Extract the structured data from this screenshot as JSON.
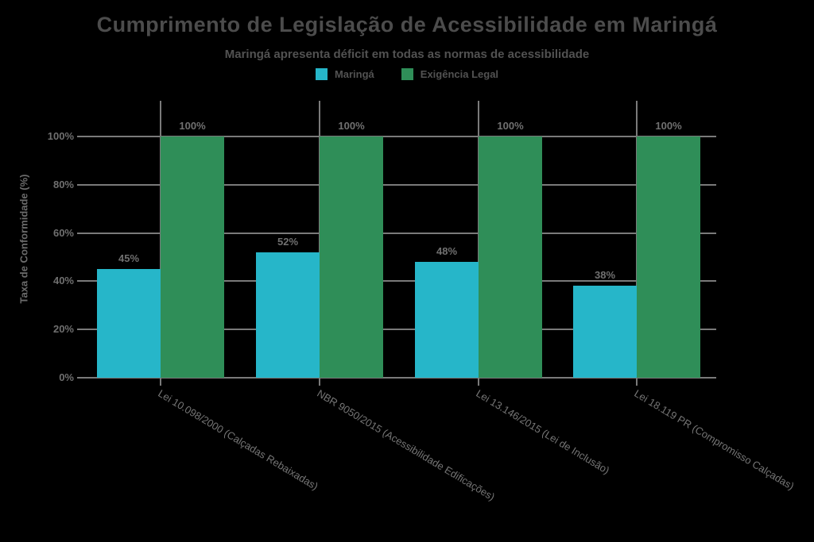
{
  "header": {
    "title": "Cumprimento de Legislação de Acessibilidade em Maringá",
    "subtitle": "Maringá apresenta déficit em todas as normas de acessibilidade"
  },
  "chart_data": {
    "type": "bar",
    "title": "Cumprimento de Legislação de Acessibilidade em Maringá",
    "subtitle": "Maringá apresenta déficit em todas as normas de acessibilidade",
    "categories": [
      "Lei 10.098/2000 (Calçadas Rebaixadas)",
      "NBR 9050/2015 (Acessibilidade Edificações)",
      "Lei 13.146/2015 (Lei de Inclusão)",
      "Lei 18.119 PR (Compromisso Calçadas)"
    ],
    "series": [
      {
        "name": "Maringá",
        "color": "#26b6c9",
        "values": [
          45,
          52,
          48,
          38
        ]
      },
      {
        "name": "Exigência Legal",
        "color": "#2f8e58",
        "values": [
          100,
          100,
          100,
          100
        ]
      }
    ],
    "value_labels": [
      [
        "45%",
        "52%",
        "48%",
        "38%"
      ],
      [
        "100%",
        "100%",
        "100%",
        "100%"
      ]
    ],
    "ylabel": "Taxa de Conformidade (%)",
    "xlabel": "",
    "y_ticks": [
      "0%",
      "20%",
      "40%",
      "60%",
      "80%",
      "100%"
    ],
    "y_tick_values": [
      0,
      20,
      40,
      60,
      80,
      100
    ],
    "ylim": [
      0,
      100
    ],
    "grid": true,
    "legend_position": "top"
  },
  "colors": {
    "background": "#000000",
    "grid": "#7a7a7a",
    "axis": "#7a7a7a",
    "series_maringa": "#26b6c9",
    "series_exigencia": "#2f8e58",
    "title_text": "#4c4c4c",
    "tick_text": "#6f6f6f"
  }
}
